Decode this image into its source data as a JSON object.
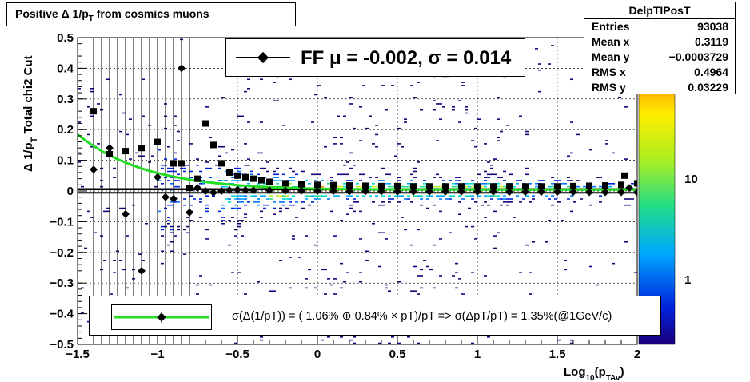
{
  "title": "Positive Δ 1/p_T from cosmics muons",
  "stats": {
    "name": "DelpTIPosT",
    "rows": [
      {
        "label": "Entries",
        "value": "93038"
      },
      {
        "label": "Mean x",
        "value": "0.3119"
      },
      {
        "label": "Mean y",
        "value": "−0.0003729"
      },
      {
        "label": "RMS x",
        "value": "0.4964"
      },
      {
        "label": "RMS y",
        "value": "0.03229"
      }
    ]
  },
  "fit_legend": "FF μ = -0.002, σ =   0.014",
  "resolution_legend": "σ(Δ(1/pT)) = ( 1.06% ⊕  0.84% × pT)/pT => σ(ΔpT/pT) =  1.35%(@1GeV/c)",
  "colors": {
    "fit_curve": "#22dd22",
    "points": "#000000",
    "palette": "rainbow"
  },
  "chart_data": {
    "type": "heatmap",
    "title": "Positive Δ 1/p_T from cosmics muons",
    "xlabel": "Log_10(p_TAv)",
    "ylabel": "Δ 1/p_T   Total chi2 Cut",
    "xlim": [
      -1.5,
      2.0
    ],
    "ylim": [
      -0.5,
      0.5
    ],
    "x_ticks": [
      "−1.5",
      "−1",
      "−0.5",
      "0",
      "0.5",
      "1",
      "1.5",
      "2"
    ],
    "y_ticks": [
      "−0.5",
      "−0.4",
      "−0.3",
      "−0.2",
      "−0.1",
      "0",
      "0.1",
      "0.2",
      "0.3",
      "0.4",
      "0.5"
    ],
    "z_ticks": [
      "1",
      "10"
    ],
    "grid": true,
    "log_z": true,
    "means": {
      "x": [
        -1.4,
        -1.3,
        -1.2,
        -1.1,
        -1.0,
        -0.95,
        -0.9,
        -0.85,
        -0.8,
        -0.75,
        -0.7,
        -0.65,
        -0.6,
        -0.55,
        -0.5,
        -0.45,
        -0.4,
        -0.3,
        -0.2,
        -0.1,
        0.0,
        0.1,
        0.2,
        0.3,
        0.4,
        0.5,
        0.6,
        0.7,
        0.8,
        0.9,
        1.0,
        1.1,
        1.2,
        1.3,
        1.4,
        1.5,
        1.6,
        1.7,
        1.8,
        1.9,
        1.95,
        2.0
      ],
      "y": [
        0.07,
        0.14,
        -0.075,
        -0.26,
        0.045,
        -0.02,
        -0.025,
        0.4,
        -0.07,
        0.01,
        0.0,
        -0.005,
        0.0,
        0.003,
        0.004,
        0.003,
        0.002,
        0.002,
        0.001,
        0.001,
        0.0,
        0.0,
        -0.001,
        -0.001,
        -0.001,
        -0.002,
        -0.002,
        -0.002,
        -0.002,
        -0.002,
        -0.002,
        -0.002,
        -0.003,
        -0.003,
        -0.003,
        -0.003,
        -0.003,
        -0.004,
        -0.004,
        -0.004,
        0.01,
        -0.005
      ]
    },
    "sigmas": {
      "x": [
        -1.4,
        -1.3,
        -1.2,
        -1.1,
        -1.0,
        -0.9,
        -0.85,
        -0.8,
        -0.75,
        -0.7,
        -0.65,
        -0.6,
        -0.55,
        -0.5,
        -0.45,
        -0.4,
        -0.35,
        -0.3,
        -0.2,
        -0.1,
        0.0,
        0.1,
        0.2,
        0.3,
        0.4,
        0.5,
        0.6,
        0.7,
        0.8,
        0.9,
        1.0,
        1.1,
        1.2,
        1.3,
        1.4,
        1.5,
        1.6,
        1.7,
        1.8,
        1.9,
        1.92,
        2.0
      ],
      "y": [
        0.26,
        0.12,
        0.13,
        0.14,
        0.16,
        0.09,
        0.09,
        0.01,
        0.04,
        0.22,
        0.15,
        0.09,
        0.06,
        0.05,
        0.045,
        0.04,
        0.035,
        0.03,
        0.025,
        0.022,
        0.02,
        0.019,
        0.018,
        0.017,
        0.016,
        0.016,
        0.015,
        0.015,
        0.015,
        0.015,
        0.015,
        0.015,
        0.015,
        0.015,
        0.015,
        0.015,
        0.016,
        0.017,
        0.018,
        0.02,
        0.05,
        0.025
      ]
    },
    "resolution_fit": {
      "a_percent": 1.06,
      "b_percent": 0.84
    },
    "gaussian_fit": {
      "mu": -0.002,
      "sigma": 0.014
    }
  }
}
